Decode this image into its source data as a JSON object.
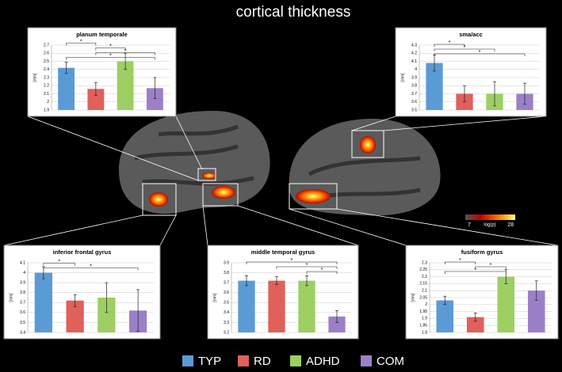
{
  "title": "cortical thickness",
  "legend": [
    {
      "name": "TYP",
      "color": "#5b9bd5"
    },
    {
      "name": "RD",
      "color": "#e0605a"
    },
    {
      "name": "ADHD",
      "color": "#9dcf62"
    },
    {
      "name": "COM",
      "color": "#9b80c8"
    }
  ],
  "colorbar": {
    "min_label": "7",
    "label": "log(p)",
    "max_label": "28"
  },
  "chart_data": [
    {
      "type": "bar",
      "title": "planum temporale",
      "y_label": "[mm]",
      "categories": [
        null,
        null,
        null,
        null
      ],
      "values": [
        2.42,
        2.16,
        2.5,
        2.17
      ],
      "errors": [
        0.07,
        0.08,
        0.1,
        0.13
      ],
      "ylim": [
        1.9,
        2.7
      ],
      "yticks": [
        1.9,
        2,
        2.1,
        2.2,
        2.3,
        2.4,
        2.5,
        2.6,
        2.7
      ],
      "grid": true,
      "annotations": [
        "*",
        "*",
        "*",
        "*"
      ]
    },
    {
      "type": "bar",
      "title": "sma/acc",
      "y_label": "[mm]",
      "categories": [
        null,
        null,
        null,
        null
      ],
      "values": [
        4.08,
        3.7,
        3.7,
        3.7
      ],
      "errors": [
        0.1,
        0.1,
        0.15,
        0.13
      ],
      "ylim": [
        3.5,
        4.3
      ],
      "yticks": [
        3.5,
        3.6,
        3.7,
        3.8,
        3.9,
        4,
        4.1,
        4.2,
        4.3
      ],
      "grid": true,
      "annotations": [
        "*",
        "*",
        "*"
      ]
    },
    {
      "type": "bar",
      "title": "inferior frontal gyrus",
      "y_label": "[mm]",
      "categories": [
        null,
        null,
        null,
        null
      ],
      "values": [
        4.0,
        3.72,
        3.75,
        3.62
      ],
      "errors": [
        0.06,
        0.06,
        0.15,
        0.21
      ],
      "ylim": [
        3.4,
        4.1
      ],
      "yticks": [
        3.4,
        3.5,
        3.6,
        3.7,
        3.8,
        3.9,
        4,
        4.1
      ],
      "grid": true,
      "annotations": [
        "*",
        "*"
      ]
    },
    {
      "type": "bar",
      "title": "middle temporal gyrus",
      "y_label": "[mm]",
      "categories": [
        null,
        null,
        null,
        null
      ],
      "values": [
        3.72,
        3.72,
        3.72,
        3.36
      ],
      "errors": [
        0.05,
        0.04,
        0.05,
        0.06
      ],
      "ylim": [
        3.2,
        3.9
      ],
      "yticks": [
        3.2,
        3.3,
        3.4,
        3.5,
        3.6,
        3.7,
        3.8,
        3.9
      ],
      "grid": true,
      "annotations": [
        "*",
        "*",
        "*"
      ]
    },
    {
      "type": "bar",
      "title": "fusiform gyrus",
      "y_label": "[mm]",
      "categories": [
        null,
        null,
        null,
        null
      ],
      "values": [
        2.03,
        1.91,
        2.2,
        2.1
      ],
      "errors": [
        0.03,
        0.03,
        0.05,
        0.07
      ],
      "ylim": [
        1.8,
        2.3
      ],
      "yticks": [
        1.8,
        1.85,
        1.9,
        1.95,
        2,
        2.05,
        2.1,
        2.15,
        2.2,
        2.25,
        2.3
      ],
      "grid": true,
      "annotations": [
        "*",
        "*",
        "*"
      ]
    }
  ]
}
